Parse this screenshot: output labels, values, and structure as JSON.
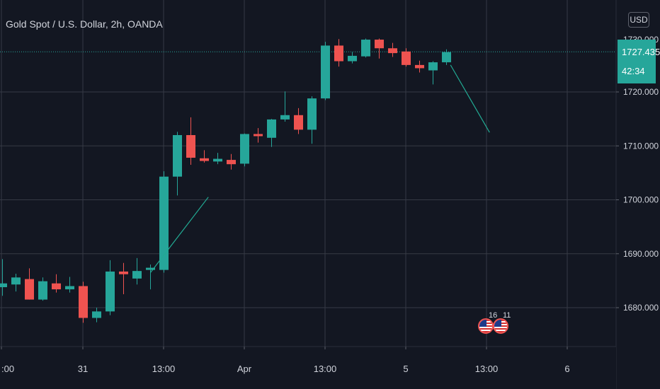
{
  "header": {
    "symbol_title": "Gold Spot / U.S. Dollar, 2h, OANDA",
    "currency_button": "USD"
  },
  "price_label": {
    "value": "1727.435",
    "countdown": "42:34"
  },
  "events": [
    {
      "count": "16",
      "icon": "us-flag-icon"
    },
    {
      "count": "11",
      "icon": "us-flag-icon"
    }
  ],
  "colors": {
    "background": "#131722",
    "grid": "#363a45",
    "up": "#26a69a",
    "down": "#ef5350",
    "text": "#d1d4dc",
    "trendline": "#22ab94"
  },
  "chart_data": {
    "type": "candlestick",
    "title": "Gold Spot / U.S. Dollar, 2h, OANDA",
    "y_axis": {
      "ticks": [
        "1680.000",
        "1690.000",
        "1700.000",
        "1710.000",
        "1720.000"
      ],
      "range": [
        1673,
        1735
      ],
      "position": "right"
    },
    "x_axis": {
      "ticks": [
        ":00",
        "31",
        "13:00",
        "Apr",
        "13:00",
        "5",
        "13:00",
        "6"
      ]
    },
    "grid": true,
    "candles": [
      {
        "o": 1683.8,
        "h": 1689.0,
        "l": 1682.2,
        "c": 1684.5
      },
      {
        "o": 1684.3,
        "h": 1686.3,
        "l": 1683.0,
        "c": 1685.6
      },
      {
        "o": 1685.3,
        "h": 1687.3,
        "l": 1681.5,
        "c": 1681.5
      },
      {
        "o": 1681.5,
        "h": 1685.6,
        "l": 1681.3,
        "c": 1684.9
      },
      {
        "o": 1684.5,
        "h": 1686.2,
        "l": 1682.8,
        "c": 1683.4
      },
      {
        "o": 1683.4,
        "h": 1685.7,
        "l": 1682.8,
        "c": 1684.0
      },
      {
        "o": 1684.0,
        "h": 1684.8,
        "l": 1677.2,
        "c": 1678.1
      },
      {
        "o": 1678.1,
        "h": 1680.0,
        "l": 1677.3,
        "c": 1679.3
      },
      {
        "o": 1679.3,
        "h": 1688.8,
        "l": 1678.6,
        "c": 1686.7
      },
      {
        "o": 1686.7,
        "h": 1688.3,
        "l": 1682.5,
        "c": 1686.2
      },
      {
        "o": 1685.4,
        "h": 1689.2,
        "l": 1684.3,
        "c": 1686.8
      },
      {
        "o": 1687.0,
        "h": 1688.0,
        "l": 1683.4,
        "c": 1687.4
      },
      {
        "o": 1687.0,
        "h": 1705.3,
        "l": 1686.5,
        "c": 1704.3
      },
      {
        "o": 1704.3,
        "h": 1712.6,
        "l": 1700.8,
        "c": 1712.0
      },
      {
        "o": 1712.0,
        "h": 1715.3,
        "l": 1706.5,
        "c": 1707.8
      },
      {
        "o": 1707.7,
        "h": 1709.2,
        "l": 1706.9,
        "c": 1707.2
      },
      {
        "o": 1707.1,
        "h": 1708.7,
        "l": 1706.6,
        "c": 1707.6
      },
      {
        "o": 1707.4,
        "h": 1708.5,
        "l": 1705.6,
        "c": 1706.6
      },
      {
        "o": 1706.7,
        "h": 1712.3,
        "l": 1706.2,
        "c": 1712.2
      },
      {
        "o": 1712.2,
        "h": 1713.3,
        "l": 1710.6,
        "c": 1711.8
      },
      {
        "o": 1711.5,
        "h": 1715.0,
        "l": 1709.8,
        "c": 1714.9
      },
      {
        "o": 1714.9,
        "h": 1720.1,
        "l": 1714.5,
        "c": 1715.7
      },
      {
        "o": 1715.7,
        "h": 1717.0,
        "l": 1712.2,
        "c": 1713.0
      },
      {
        "o": 1713.0,
        "h": 1719.2,
        "l": 1710.4,
        "c": 1718.8
      },
      {
        "o": 1718.8,
        "h": 1729.3,
        "l": 1718.5,
        "c": 1728.6
      },
      {
        "o": 1728.6,
        "h": 1729.8,
        "l": 1724.7,
        "c": 1725.7
      },
      {
        "o": 1725.7,
        "h": 1727.4,
        "l": 1725.3,
        "c": 1726.7
      },
      {
        "o": 1726.6,
        "h": 1729.9,
        "l": 1726.4,
        "c": 1729.7
      },
      {
        "o": 1729.7,
        "h": 1729.9,
        "l": 1726.2,
        "c": 1728.1
      },
      {
        "o": 1728.1,
        "h": 1729.1,
        "l": 1726.5,
        "c": 1727.2
      },
      {
        "o": 1727.5,
        "h": 1728.1,
        "l": 1724.7,
        "c": 1725.0
      },
      {
        "o": 1725.0,
        "h": 1725.8,
        "l": 1723.6,
        "c": 1724.4
      },
      {
        "o": 1724.0,
        "h": 1725.7,
        "l": 1721.4,
        "c": 1725.5
      },
      {
        "o": 1725.5,
        "h": 1727.9,
        "l": 1725.0,
        "c": 1727.4
      }
    ],
    "trendlines": [
      {
        "from": {
          "candle": 11,
          "price": 1686.5
        },
        "to": {
          "candle": 15.3,
          "price": 1700.5
        }
      },
      {
        "from": {
          "candle": 33.3,
          "price": 1725.0
        },
        "to": {
          "candle": 36.2,
          "price": 1712.5
        }
      }
    ],
    "current_price_line": 1727.435
  }
}
